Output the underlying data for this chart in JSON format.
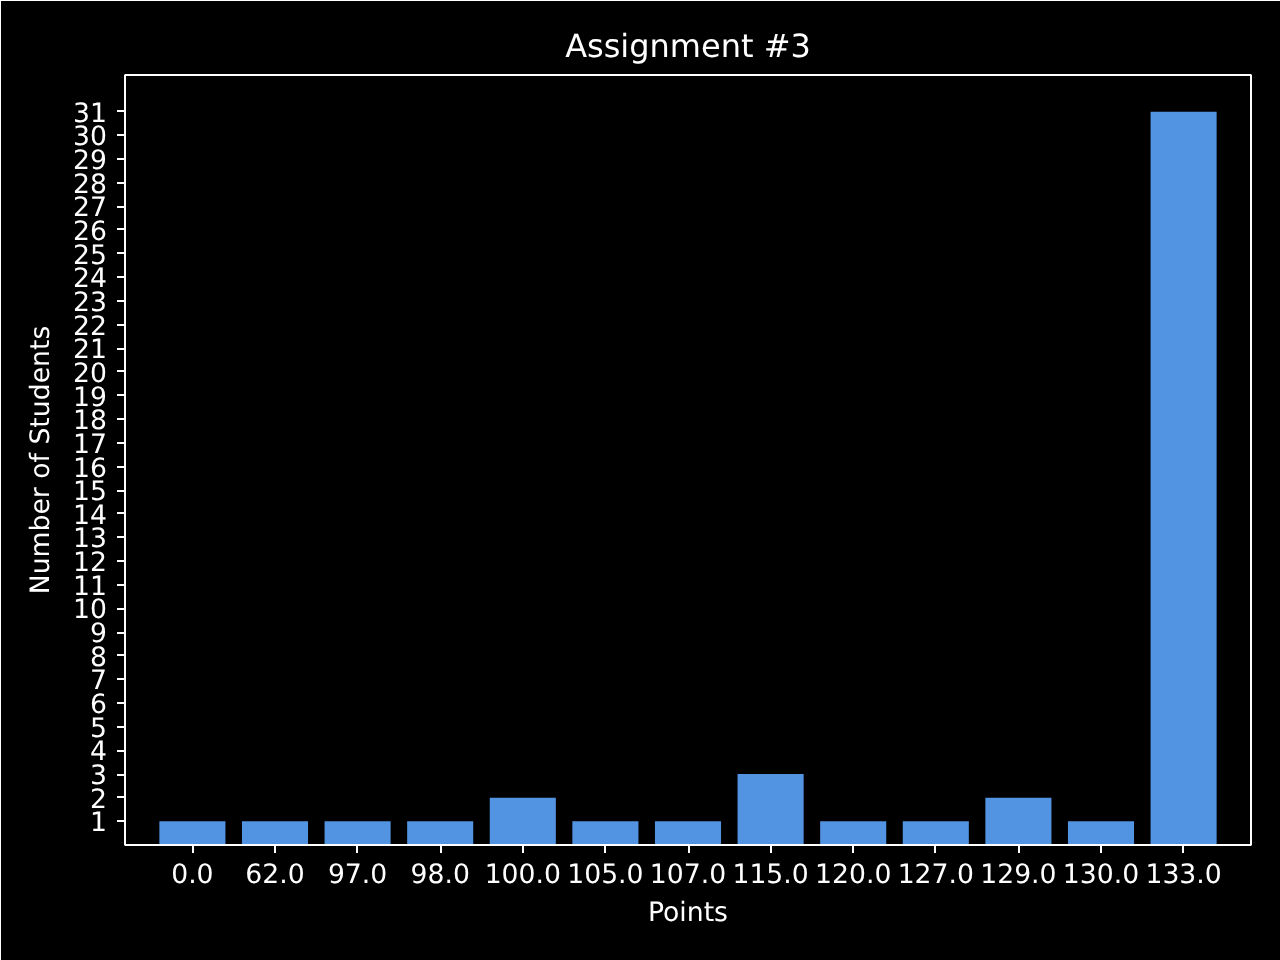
{
  "chart_data": {
    "type": "bar",
    "title": "Assignment #3",
    "xlabel": "Points",
    "ylabel": "Number of Students",
    "categories": [
      "0.0",
      "62.0",
      "97.0",
      "98.0",
      "100.0",
      "105.0",
      "107.0",
      "115.0",
      "120.0",
      "127.0",
      "129.0",
      "130.0",
      "133.0"
    ],
    "values": [
      1,
      1,
      1,
      1,
      2,
      1,
      1,
      3,
      1,
      1,
      2,
      1,
      31
    ],
    "color": "#5294e2",
    "ylim": [
      0,
      32.55
    ],
    "yticks": [
      1,
      2,
      3,
      4,
      5,
      6,
      7,
      8,
      9,
      10,
      11,
      12,
      13,
      14,
      15,
      16,
      17,
      18,
      19,
      20,
      21,
      22,
      23,
      24,
      25,
      26,
      27,
      28,
      29,
      30,
      31
    ]
  }
}
